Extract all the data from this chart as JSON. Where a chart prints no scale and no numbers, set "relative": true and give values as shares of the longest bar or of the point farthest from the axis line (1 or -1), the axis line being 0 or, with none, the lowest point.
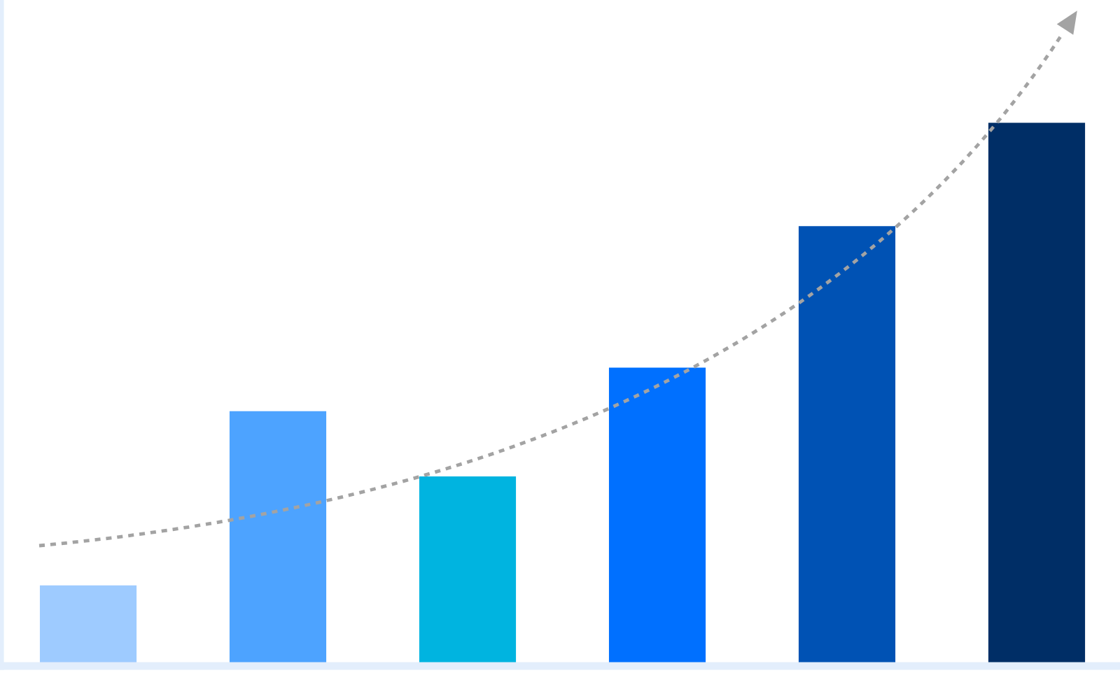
{
  "chart_data": {
    "type": "bar",
    "relative": true,
    "categories": [
      null,
      null,
      null,
      null,
      null,
      null
    ],
    "values": [
      0.15,
      0.47,
      0.35,
      0.55,
      0.81,
      1.0
    ],
    "colors": [
      "#9ecbff",
      "#4da3ff",
      "#00b4e0",
      "#0070ff",
      "#0052b4",
      "#002e66"
    ]
  }
}
